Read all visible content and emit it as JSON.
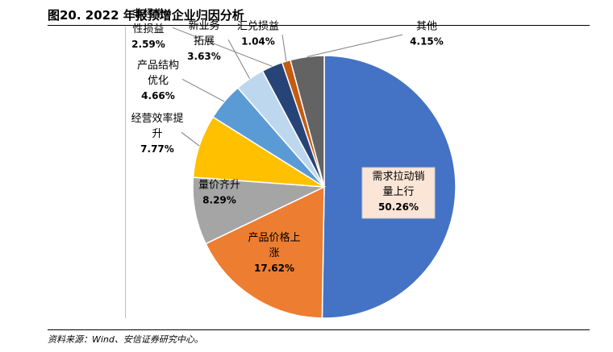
{
  "figure": {
    "title": "图20. 2022 年报预增企业归因分析",
    "source": "资料来源：Wind、安信证券研究中心。"
  },
  "chart_data": {
    "type": "pie",
    "title": "",
    "start": "12 o'clock",
    "direction": "clockwise",
    "slices": [
      {
        "label_lines": [
          "需求拉动销",
          "量上行"
        ],
        "value": 50.26,
        "value_text": "50.26%",
        "color": "#4472c4"
      },
      {
        "label_lines": [
          "产品价格上",
          "涨"
        ],
        "value": 17.62,
        "value_text": "17.62%",
        "color": "#ed7d31"
      },
      {
        "label_lines": [
          "量价齐升"
        ],
        "value": 8.29,
        "value_text": "8.29%",
        "color": "#a5a5a5"
      },
      {
        "label_lines": [
          "经营效率提",
          "升"
        ],
        "value": 7.77,
        "value_text": "7.77%",
        "color": "#ffc000"
      },
      {
        "label_lines": [
          "产品结构",
          "优化"
        ],
        "value": 4.66,
        "value_text": "4.66%",
        "color": "#5b9bd5"
      },
      {
        "label_lines": [
          "新业务",
          "拓展"
        ],
        "value": 3.63,
        "value_text": "3.63%",
        "color": "#bdd7ee"
      },
      {
        "label_lines": [
          "非经常",
          "性损益"
        ],
        "value": 2.59,
        "value_text": "2.59%",
        "color": "#264478"
      },
      {
        "label_lines": [
          "汇兑损益"
        ],
        "value": 1.04,
        "value_text": "1.04%",
        "color": "#c55a11"
      },
      {
        "label_lines": [
          "其他"
        ],
        "value": 4.15,
        "value_text": "4.15%",
        "color": "#636363"
      }
    ]
  }
}
